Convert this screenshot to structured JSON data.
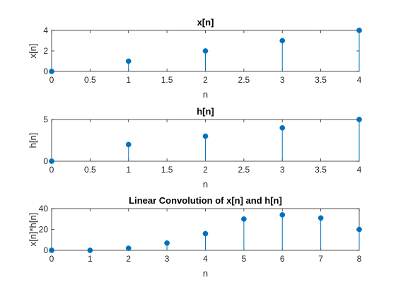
{
  "colors": {
    "stem": "#0072BD",
    "axes": "#262626",
    "background": "#ffffff"
  },
  "chart_data": [
    {
      "type": "stem",
      "title": "x[n]",
      "xlabel": "n",
      "ylabel": "x[n]",
      "x": [
        0,
        1,
        2,
        3,
        4
      ],
      "values": [
        0,
        1,
        2,
        3,
        4
      ],
      "xlim": [
        0,
        4
      ],
      "ylim": [
        0,
        4
      ],
      "xticks": [
        "0",
        "0.5",
        "1",
        "1.5",
        "2",
        "2.5",
        "3",
        "3.5",
        "4"
      ],
      "yticks": [
        "0",
        "2",
        "4"
      ],
      "grid": false
    },
    {
      "type": "stem",
      "title": "h[n]",
      "xlabel": "n",
      "ylabel": "h[n]",
      "x": [
        0,
        1,
        2,
        3,
        4
      ],
      "values": [
        0,
        2,
        3,
        4,
        5
      ],
      "xlim": [
        0,
        4
      ],
      "ylim": [
        0,
        5
      ],
      "xticks": [
        "0",
        "0.5",
        "1",
        "1.5",
        "2",
        "2.5",
        "3",
        "3.5",
        "4"
      ],
      "yticks": [
        "0",
        "5"
      ],
      "grid": false
    },
    {
      "type": "stem",
      "title": "Linear Convolution of x[n] and h[n]",
      "xlabel": "n",
      "ylabel": "x[n]*h[n]",
      "x": [
        0,
        1,
        2,
        3,
        4,
        5,
        6,
        7,
        8
      ],
      "values": [
        0,
        0,
        2,
        7,
        16,
        30,
        34,
        31,
        20
      ],
      "xlim": [
        0,
        8
      ],
      "ylim": [
        0,
        40
      ],
      "xticks": [
        "0",
        "1",
        "2",
        "3",
        "4",
        "5",
        "6",
        "7",
        "8"
      ],
      "yticks": [
        "0",
        "20",
        "40"
      ],
      "grid": false
    }
  ]
}
